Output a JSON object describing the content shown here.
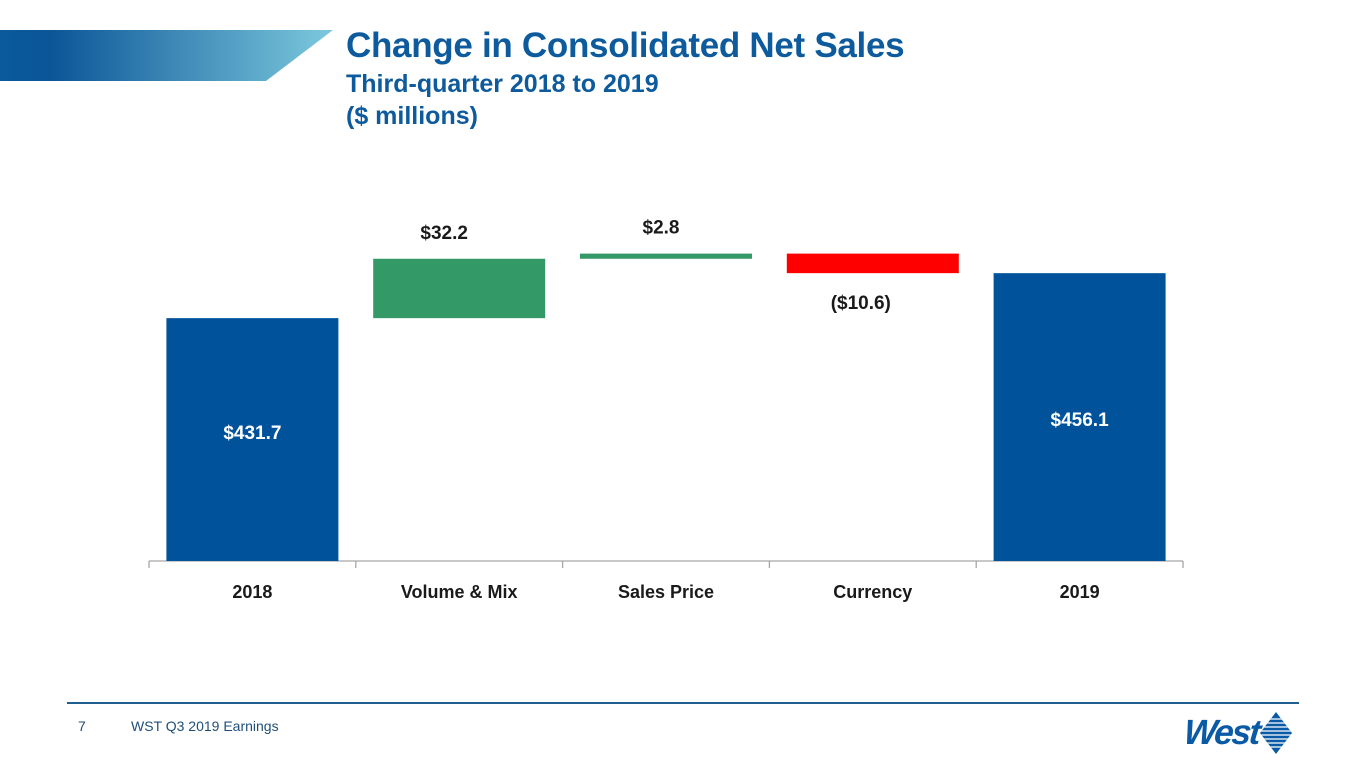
{
  "header": {
    "title": "Change in Consolidated Net Sales",
    "subtitle": "Third-quarter 2018 to 2019",
    "units": "($ millions)"
  },
  "footer": {
    "page_number": "7",
    "text": "WST Q3 2019 Earnings",
    "logo_text": "West"
  },
  "colors": {
    "total": "#00539b",
    "increase": "#339966",
    "decrease": "#ff0000",
    "title": "#0d5a9c"
  },
  "chart_data": {
    "type": "bar",
    "subtype": "waterfall",
    "title": "Change in Consolidated Net Sales",
    "subtitle": "Third-quarter 2018 to 2019 ($ millions)",
    "categories": [
      "2018",
      "Volume & Mix",
      "Sales Price",
      "Currency",
      "2019"
    ],
    "values": [
      431.7,
      32.2,
      2.8,
      -10.6,
      456.1
    ],
    "kinds": [
      "total",
      "increase",
      "increase",
      "decrease",
      "total"
    ],
    "labels": [
      "$431.7",
      "$32.2",
      "$2.8",
      "($10.6)",
      "$456.1"
    ],
    "xlabel": "",
    "ylabel": "",
    "ylim": [
      300,
      475
    ],
    "grid": false,
    "legend": "none"
  }
}
